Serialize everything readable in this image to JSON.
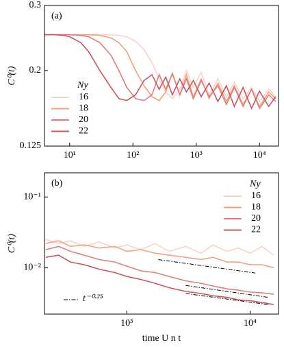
{
  "chart_data": [
    {
      "type": "line",
      "panel_label": "(a)",
      "ylabel": "C⁰(t)",
      "log_x": true,
      "log_y": true,
      "legend": "lower left",
      "legend_title": "Ny",
      "xlim": [
        4,
        20000
      ],
      "ylim": [
        0.125,
        0.3
      ],
      "xticks": [
        {
          "value": 10,
          "label": "10¹"
        },
        {
          "value": 100,
          "label": "10²"
        },
        {
          "value": 1000,
          "label": "10³"
        },
        {
          "value": 10000,
          "label": "10⁴"
        }
      ],
      "yticks": [
        0.125,
        0.2,
        0.3
      ],
      "series": [
        {
          "name": "16",
          "color": "#f9d3ca",
          "x": [
            4,
            6,
            8,
            10,
            15,
            20,
            30,
            45,
            60,
            80,
            110,
            150,
            200,
            260,
            330,
            420,
            550,
            700,
            900,
            1200,
            1600,
            2200,
            3000,
            4000,
            5500,
            7500,
            10000,
            14000,
            18000
          ],
          "values": [
            0.25,
            0.25,
            0.25,
            0.25,
            0.25,
            0.25,
            0.25,
            0.25,
            0.249,
            0.247,
            0.24,
            0.228,
            0.21,
            0.19,
            0.175,
            0.168,
            0.178,
            0.2,
            0.18,
            0.198,
            0.172,
            0.19,
            0.17,
            0.186,
            0.168,
            0.18,
            0.165,
            0.178,
            0.17
          ]
        },
        {
          "name": "18",
          "color": "#f5a07f",
          "x": [
            4,
            6,
            8,
            10,
            15,
            20,
            30,
            45,
            60,
            80,
            110,
            150,
            200,
            260,
            330,
            420,
            550,
            700,
            900,
            1200,
            1600,
            2200,
            3000,
            4000,
            5500,
            7500,
            10000,
            14000,
            18000
          ],
          "values": [
            0.25,
            0.25,
            0.25,
            0.25,
            0.25,
            0.25,
            0.249,
            0.245,
            0.238,
            0.225,
            0.2,
            0.182,
            0.17,
            0.166,
            0.175,
            0.197,
            0.172,
            0.195,
            0.17,
            0.19,
            0.168,
            0.185,
            0.165,
            0.182,
            0.162,
            0.178,
            0.16,
            0.175,
            0.168
          ]
        },
        {
          "name": "20",
          "color": "#e27b7b",
          "x": [
            4,
            6,
            8,
            10,
            15,
            20,
            30,
            45,
            60,
            80,
            110,
            150,
            200,
            260,
            330,
            420,
            550,
            700,
            900,
            1200,
            1600,
            2200,
            3000,
            4000,
            5500,
            7500,
            10000,
            14000,
            18000
          ],
          "values": [
            0.25,
            0.25,
            0.25,
            0.25,
            0.249,
            0.247,
            0.238,
            0.22,
            0.2,
            0.18,
            0.168,
            0.166,
            0.172,
            0.195,
            0.178,
            0.196,
            0.172,
            0.19,
            0.168,
            0.188,
            0.17,
            0.182,
            0.162,
            0.18,
            0.16,
            0.178,
            0.158,
            0.172,
            0.165
          ]
        },
        {
          "name": "22",
          "color": "#c9545e",
          "x": [
            4,
            6,
            8,
            10,
            15,
            20,
            30,
            45,
            60,
            80,
            110,
            150,
            200,
            260,
            330,
            420,
            550,
            700,
            900,
            1200,
            1600,
            2200,
            3000,
            4000,
            5500,
            7500,
            10000,
            14000,
            18000
          ],
          "values": [
            0.25,
            0.25,
            0.249,
            0.247,
            0.238,
            0.225,
            0.2,
            0.18,
            0.168,
            0.166,
            0.172,
            0.188,
            0.195,
            0.178,
            0.192,
            0.172,
            0.19,
            0.175,
            0.188,
            0.17,
            0.185,
            0.165,
            0.182,
            0.16,
            0.18,
            0.158,
            0.176,
            0.16,
            0.17
          ]
        }
      ]
    },
    {
      "type": "line",
      "panel_label": "(b)",
      "ylabel": "C⁰(t)",
      "xlabel": "time U n t",
      "log_x": true,
      "log_y": true,
      "legend": "upper right",
      "legend_title": "Ny",
      "xlim": [
        215,
        17000
      ],
      "ylim": [
        0.0022,
        0.22
      ],
      "xticks": [
        {
          "value": 1000,
          "label": "10³"
        },
        {
          "value": 10000,
          "label": "10⁴"
        }
      ],
      "yticks": [
        {
          "value": 0.1,
          "label": "10⁻¹"
        },
        {
          "value": 0.01,
          "label": "10⁻²"
        }
      ],
      "series": [
        {
          "name": "16",
          "color": "#f9d3ca",
          "x": [
            220,
            280,
            350,
            450,
            600,
            800,
            1000,
            1300,
            1700,
            2200,
            3000,
            4000,
            5000,
            6500,
            8000,
            10000,
            12500,
            15500
          ],
          "values": [
            0.025,
            0.022,
            0.024,
            0.02,
            0.023,
            0.019,
            0.021,
            0.018,
            0.022,
            0.017,
            0.02,
            0.016,
            0.021,
            0.017,
            0.019,
            0.016,
            0.02,
            0.015
          ]
        },
        {
          "name": "18",
          "color": "#f5a07f",
          "x": [
            220,
            280,
            350,
            450,
            600,
            800,
            1000,
            1300,
            1700,
            2200,
            3000,
            4000,
            5000,
            6500,
            8000,
            10000,
            12500,
            15500
          ],
          "values": [
            0.022,
            0.024,
            0.02,
            0.021,
            0.019,
            0.02,
            0.017,
            0.018,
            0.016,
            0.015,
            0.014,
            0.013,
            0.014,
            0.012,
            0.012,
            0.011,
            0.011,
            0.01
          ]
        },
        {
          "name": "20",
          "color": "#e27b7b",
          "x": [
            220,
            280,
            350,
            450,
            600,
            800,
            1000,
            1300,
            1700,
            2200,
            3000,
            4000,
            5000,
            6500,
            8000,
            10000,
            12500,
            15500
          ],
          "values": [
            0.018,
            0.02,
            0.017,
            0.015,
            0.013,
            0.012,
            0.0105,
            0.009,
            0.0085,
            0.0075,
            0.0065,
            0.006,
            0.0055,
            0.005,
            0.0048,
            0.0045,
            0.0044,
            0.0042
          ]
        },
        {
          "name": "22",
          "color": "#c9545e",
          "x": [
            220,
            280,
            350,
            450,
            600,
            800,
            1000,
            1300,
            1700,
            2200,
            3000,
            4000,
            5000,
            6500,
            8000,
            10000,
            12500,
            15500
          ],
          "values": [
            0.014,
            0.015,
            0.012,
            0.011,
            0.0095,
            0.0085,
            0.0075,
            0.0068,
            0.006,
            0.0052,
            0.0046,
            0.0043,
            0.004,
            0.0038,
            0.0035,
            0.0034,
            0.0032,
            0.003
          ]
        }
      ],
      "guides": {
        "label": "t⁻⁰·²⁵",
        "color": "#000000",
        "segments": [
          {
            "x": [
              1800,
              11000
            ],
            "values": [
              0.013,
              0.0084
            ]
          },
          {
            "x": [
              3000,
              14000
            ],
            "values": [
              0.0056,
              0.0038
            ]
          },
          {
            "x": [
              3000,
              14000
            ],
            "values": [
              0.0043,
              0.003
            ]
          }
        ]
      }
    }
  ]
}
